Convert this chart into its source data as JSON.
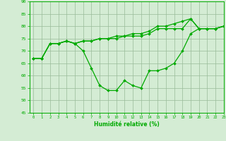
{
  "x": [
    0,
    1,
    2,
    3,
    4,
    5,
    6,
    7,
    8,
    9,
    10,
    11,
    12,
    13,
    14,
    15,
    16,
    17,
    18,
    19,
    20,
    21,
    22,
    23
  ],
  "line1": [
    67,
    67,
    73,
    73,
    74,
    73,
    74,
    74,
    75,
    75,
    75,
    76,
    76,
    76,
    77,
    79,
    79,
    79,
    79,
    83,
    79,
    79,
    79,
    80
  ],
  "line2": [
    67,
    67,
    73,
    73,
    74,
    73,
    74,
    74,
    75,
    75,
    76,
    76,
    77,
    77,
    78,
    80,
    80,
    81,
    82,
    83,
    79,
    79,
    79,
    80
  ],
  "line3": [
    67,
    67,
    73,
    73,
    74,
    73,
    70,
    63,
    56,
    54,
    54,
    58,
    56,
    55,
    62,
    62,
    63,
    65,
    70,
    77,
    79,
    79,
    79,
    80
  ],
  "xlabel": "Humidité relative (%)",
  "ylim": [
    45,
    90
  ],
  "xlim": [
    -0.5,
    23
  ],
  "yticks": [
    45,
    50,
    55,
    60,
    65,
    70,
    75,
    80,
    85,
    90
  ],
  "xticks": [
    0,
    1,
    2,
    3,
    4,
    5,
    6,
    7,
    8,
    9,
    10,
    11,
    12,
    13,
    14,
    15,
    16,
    17,
    18,
    19,
    20,
    21,
    22,
    23
  ],
  "line_color": "#00aa00",
  "bg_color": "#d4ecd4",
  "grid_color": "#99bb99",
  "markersize": 2.0,
  "linewidth": 0.9
}
